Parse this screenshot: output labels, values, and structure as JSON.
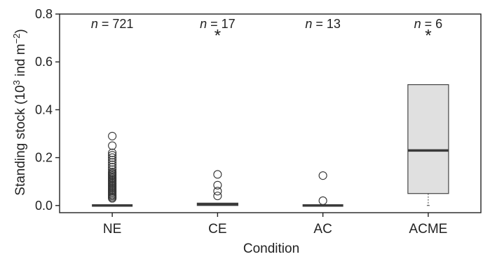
{
  "chart_data": {
    "type": "box",
    "xlabel": "Condition",
    "ylabel": {
      "prefix": "Standing stock (10",
      "sup1": "3",
      "mid": " ind m",
      "sup2": "−2",
      "suffix": ")"
    },
    "ylim": [
      -0.03,
      0.8
    ],
    "yticks": [
      0.0,
      0.2,
      0.4,
      0.6,
      0.8
    ],
    "ytick_labels": [
      "0.0",
      "0.2",
      "0.4",
      "0.6",
      "0.8"
    ],
    "grid": false,
    "n_prefix": "n",
    "n_equals": " = ",
    "categories": [
      {
        "name": "NE",
        "n": "721",
        "median": 0.0,
        "q1": 0.0,
        "q3": 0.0,
        "whisker_low": 0.0,
        "whisker_high": 0.0,
        "outliers": [
          0.03,
          0.035,
          0.04,
          0.045,
          0.05,
          0.055,
          0.06,
          0.065,
          0.07,
          0.075,
          0.08,
          0.085,
          0.09,
          0.095,
          0.1,
          0.105,
          0.11,
          0.115,
          0.12,
          0.125,
          0.13,
          0.135,
          0.14,
          0.15,
          0.16,
          0.17,
          0.18,
          0.19,
          0.2,
          0.21,
          0.22,
          0.25,
          0.29
        ],
        "mean_marker": "",
        "mean": null
      },
      {
        "name": "CE",
        "n": "17",
        "median": 0.005,
        "q1": 0.0,
        "q3": 0.01,
        "whisker_low": 0.0,
        "whisker_high": 0.01,
        "outliers": [
          0.04,
          0.06,
          0.085,
          0.13
        ],
        "mean_marker": "*",
        "mean": 0.72
      },
      {
        "name": "AC",
        "n": "13",
        "median": 0.0,
        "q1": 0.0,
        "q3": 0.0,
        "whisker_low": 0.0,
        "whisker_high": 0.0,
        "outliers": [
          0.02,
          0.125
        ],
        "mean_marker": "",
        "mean": null
      },
      {
        "name": "ACME",
        "n": "6",
        "median": 0.23,
        "q1": 0.05,
        "q3": 0.505,
        "whisker_low": 0.0,
        "whisker_high": 0.505,
        "outliers": [],
        "mean_marker": "*",
        "mean": 0.72
      }
    ],
    "colors": {
      "box_fill": "#e0e0e0",
      "box_stroke": "#444444",
      "median": "#3a3a3a",
      "outlier_stroke": "#333333",
      "axis": "#222222"
    }
  }
}
